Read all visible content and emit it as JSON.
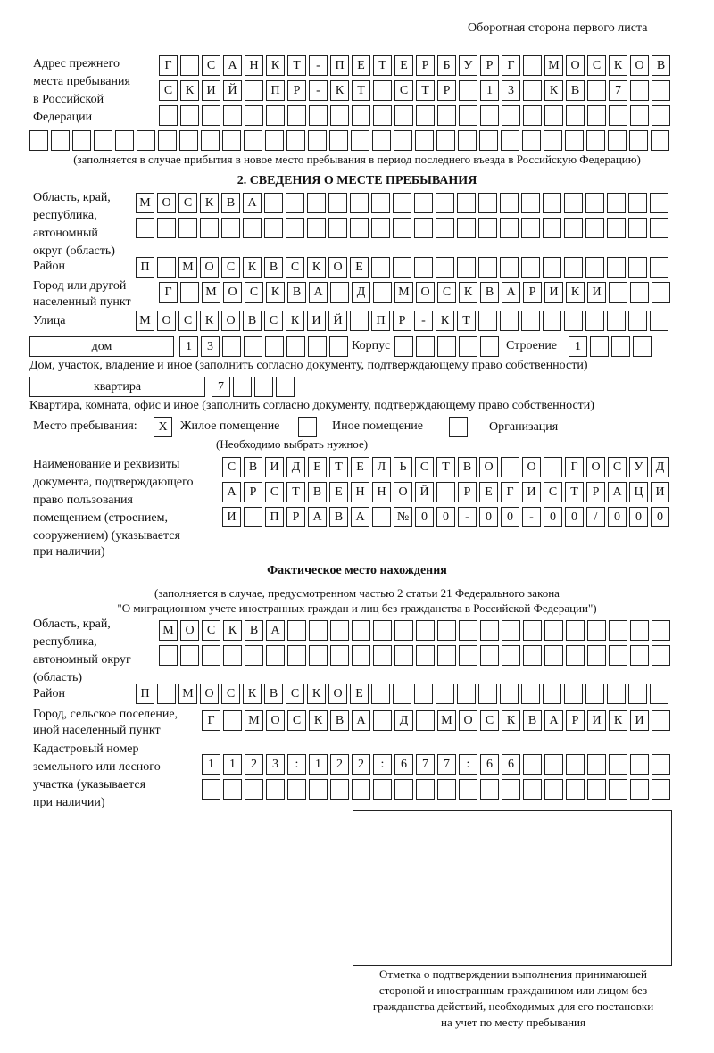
{
  "header": "Оборотная сторона первого листа",
  "prev_address": {
    "label": [
      "Адрес прежнего",
      "места пребывания",
      "в Российской",
      "Федерации"
    ],
    "rows": [
      [
        "Г",
        "",
        "С",
        "А",
        "Н",
        "К",
        "Т",
        "-",
        "П",
        "Е",
        "Т",
        "Е",
        "Р",
        "Б",
        "У",
        "Р",
        "Г",
        "",
        "М",
        "О",
        "С",
        "К",
        "О",
        "В"
      ],
      [
        "С",
        "К",
        "И",
        "Й",
        "",
        "П",
        "Р",
        "-",
        "К",
        "Т",
        "",
        "С",
        "Т",
        "Р",
        "",
        "1",
        "3",
        "",
        "К",
        "В",
        "",
        "7",
        "",
        ""
      ],
      [
        "",
        "",
        "",
        "",
        "",
        "",
        "",
        "",
        "",
        "",
        "",
        "",
        "",
        "",
        "",
        "",
        "",
        "",
        "",
        "",
        "",
        "",
        "",
        ""
      ],
      [
        "",
        "",
        "",
        "",
        "",
        "",
        "",
        "",
        "",
        "",
        "",
        "",
        "",
        "",
        "",
        "",
        "",
        "",
        "",
        "",
        "",
        "",
        "",
        "",
        "",
        "",
        "",
        "",
        "",
        ""
      ]
    ],
    "note": "(заполняется в случае прибытия в новое место пребывания в период последнего въезда в Российскую Федерацию)"
  },
  "section2": {
    "title": "2. СВЕДЕНИЯ О МЕСТЕ ПРЕБЫВАНИЯ",
    "region_label": [
      "Область, край,",
      "республика,",
      "автономный",
      "округ (область)"
    ],
    "region_rows": [
      [
        "М",
        "О",
        "С",
        "К",
        "В",
        "А",
        "",
        "",
        "",
        "",
        "",
        "",
        "",
        "",
        "",
        "",
        "",
        "",
        "",
        "",
        "",
        "",
        "",
        "",
        ""
      ],
      [
        "",
        "",
        "",
        "",
        "",
        "",
        "",
        "",
        "",
        "",
        "",
        "",
        "",
        "",
        "",
        "",
        "",
        "",
        "",
        "",
        "",
        "",
        "",
        "",
        ""
      ]
    ],
    "district_label": "Район",
    "district_row": [
      "П",
      "",
      "М",
      "О",
      "С",
      "К",
      "В",
      "С",
      "К",
      "О",
      "Е",
      "",
      "",
      "",
      "",
      "",
      "",
      "",
      "",
      "",
      "",
      "",
      "",
      "",
      ""
    ],
    "city_label": [
      "Город или другой",
      "населенный пункт"
    ],
    "city_row": [
      "Г",
      "",
      "М",
      "О",
      "С",
      "К",
      "В",
      "А",
      "",
      "Д",
      "",
      "М",
      "О",
      "С",
      "К",
      "В",
      "А",
      "Р",
      "И",
      "К",
      "И",
      "",
      "",
      ""
    ],
    "street_label": "Улица",
    "street_row": [
      "М",
      "О",
      "С",
      "К",
      "О",
      "В",
      "С",
      "К",
      "И",
      "Й",
      "",
      "П",
      "Р",
      "-",
      "К",
      "Т",
      "",
      "",
      "",
      "",
      "",
      "",
      "",
      "",
      ""
    ],
    "house_type": "дом",
    "house_row": [
      "1",
      "3",
      "",
      "",
      "",
      "",
      "",
      ""
    ],
    "korpus_label": "Корпус",
    "korpus_row": [
      "",
      "",
      "",
      "",
      ""
    ],
    "building_label": "Строение",
    "building_row": [
      "1",
      "",
      "",
      ""
    ],
    "house_note": "Дом, участок, владение и иное (заполнить согласно документу, подтверждающему право собственности)",
    "flat_type": "квартира",
    "flat_row": [
      "7",
      "",
      "",
      ""
    ],
    "flat_note": "Квартира, комната, офис и иное (заполнить согласно документу, подтверждающему право собственности)",
    "stay_label": "Место пребывания:",
    "stay_options": [
      {
        "mark": "X",
        "label": "Жилое помещение"
      },
      {
        "mark": "",
        "label": "Иное помещение"
      },
      {
        "mark": "",
        "label": "Организация"
      }
    ],
    "stay_note": "(Необходимо выбрать нужное)",
    "doc_label": [
      "Наименование и реквизиты",
      "документа, подтверждающего",
      "право пользования",
      "помещением (строением,",
      "сооружением) (указывается",
      "при наличии)"
    ],
    "doc_rows": [
      [
        "С",
        "В",
        "И",
        "Д",
        "Е",
        "Т",
        "Е",
        "Л",
        "Ь",
        "С",
        "Т",
        "В",
        "О",
        "",
        "О",
        "",
        "Г",
        "О",
        "С",
        "У",
        "Д"
      ],
      [
        "А",
        "Р",
        "С",
        "Т",
        "В",
        "Е",
        "Н",
        "Н",
        "О",
        "Й",
        "",
        "Р",
        "Е",
        "Г",
        "И",
        "С",
        "Т",
        "Р",
        "А",
        "Ц",
        "И"
      ],
      [
        "И",
        "",
        "П",
        "Р",
        "А",
        "В",
        "А",
        "",
        "№",
        "0",
        "0",
        "-",
        "0",
        "0",
        "-",
        "0",
        "0",
        "/",
        "0",
        "0",
        "0"
      ]
    ]
  },
  "actual": {
    "title": "Фактическое место нахождения",
    "note": [
      "(заполняется в случае, предусмотренном частью 2 статьи 21 Федерального закона",
      "\"О миграционном учете иностранных граждан и лиц без гражданства в Российской Федерации\")"
    ],
    "region_label": [
      "Область, край,",
      "республика,",
      "автономный округ",
      "(область)"
    ],
    "region_rows": [
      [
        "М",
        "О",
        "С",
        "К",
        "В",
        "А",
        "",
        "",
        "",
        "",
        "",
        "",
        "",
        "",
        "",
        "",
        "",
        "",
        "",
        "",
        "",
        "",
        "",
        ""
      ],
      [
        "",
        "",
        "",
        "",
        "",
        "",
        "",
        "",
        "",
        "",
        "",
        "",
        "",
        "",
        "",
        "",
        "",
        "",
        "",
        "",
        "",
        "",
        "",
        ""
      ]
    ],
    "district_label": "Район",
    "district_row": [
      "П",
      "",
      "М",
      "О",
      "С",
      "К",
      "В",
      "С",
      "К",
      "О",
      "Е",
      "",
      "",
      "",
      "",
      "",
      "",
      "",
      "",
      "",
      "",
      "",
      "",
      "",
      ""
    ],
    "city_label": [
      "Город, сельское поселение,",
      "иной населенный пункт"
    ],
    "city_row": [
      "Г",
      "",
      "М",
      "О",
      "С",
      "К",
      "В",
      "А",
      "",
      "Д",
      "",
      "М",
      "О",
      "С",
      "К",
      "В",
      "А",
      "Р",
      "И",
      "К",
      "И",
      ""
    ],
    "cadastral_label": [
      "Кадастровый номер",
      "земельного или лесного",
      "участка (указывается",
      "при наличии)"
    ],
    "cadastral_rows": [
      [
        "1",
        "1",
        "2",
        "3",
        ":",
        "1",
        "2",
        "2",
        ":",
        "6",
        "7",
        "7",
        ":",
        "6",
        "6",
        "",
        "",
        "",
        "",
        "",
        "",
        ""
      ],
      [
        "",
        "",
        "",
        "",
        "",
        "",
        "",
        "",
        "",
        "",
        "",
        "",
        "",
        "",
        "",
        "",
        "",
        "",
        "",
        "",
        "",
        ""
      ]
    ]
  },
  "stamp_caption": [
    "Отметка о подтверждении выполнения принимающей",
    "стороной и иностранным гражданином или лицом без",
    "гражданства действий, необходимых для его постановки",
    "на учет по месту пребывания"
  ]
}
